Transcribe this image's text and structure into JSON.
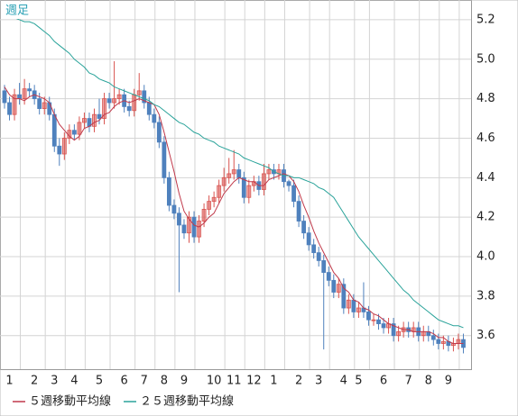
{
  "chart_data": {
    "type": "candlestick",
    "title": "週足",
    "categories": [
      null,
      "1",
      null,
      null,
      null,
      null,
      "2",
      null,
      null,
      null,
      "3",
      null,
      null,
      null,
      "4",
      null,
      null,
      null,
      null,
      "5",
      null,
      null,
      null,
      null,
      "6",
      null,
      null,
      null,
      "7",
      null,
      null,
      null,
      "8",
      null,
      null,
      null,
      "9",
      null,
      null,
      null,
      null,
      null,
      "10",
      null,
      null,
      null,
      "11",
      null,
      null,
      null,
      "12",
      null,
      null,
      null,
      "1",
      null,
      null,
      null,
      null,
      "2",
      null,
      null,
      null,
      "3",
      null,
      null,
      null,
      null,
      "4",
      null,
      null,
      "5",
      null,
      null,
      null,
      null,
      "6",
      null,
      null,
      null,
      null,
      "7",
      null,
      null,
      null,
      "8",
      null,
      null,
      null,
      "9",
      null,
      null,
      null
    ],
    "open": [
      4.84,
      4.78,
      4.72,
      4.82,
      4.8,
      4.85,
      4.84,
      4.8,
      4.75,
      4.78,
      4.72,
      4.56,
      4.52,
      4.6,
      4.64,
      4.62,
      4.68,
      4.7,
      4.66,
      4.72,
      4.7,
      4.8,
      4.78,
      4.8,
      4.82,
      4.76,
      4.74,
      4.82,
      4.84,
      4.78,
      4.72,
      4.68,
      4.58,
      4.4,
      4.26,
      4.22,
      4.16,
      4.12,
      4.2,
      4.1,
      4.18,
      4.24,
      4.28,
      4.3,
      4.36,
      4.4,
      4.42,
      4.44,
      4.4,
      4.3,
      4.36,
      4.38,
      4.34,
      4.42,
      4.44,
      4.42,
      4.44,
      4.38,
      4.36,
      4.28,
      4.18,
      4.12,
      4.06,
      4.02,
      3.98,
      3.92,
      3.88,
      3.82,
      3.86,
      3.74,
      3.78,
      3.72,
      3.74,
      3.72,
      3.68,
      3.68,
      3.66,
      3.64,
      3.66,
      3.6,
      3.62,
      3.64,
      3.62,
      3.64,
      3.6,
      3.62,
      3.6,
      3.58,
      3.56,
      3.57,
      3.55,
      3.56,
      3.58
    ],
    "high": [
      4.87,
      4.81,
      4.85,
      4.88,
      4.9,
      4.88,
      4.87,
      4.83,
      4.81,
      4.81,
      4.75,
      4.6,
      4.63,
      4.67,
      4.67,
      4.71,
      4.73,
      4.73,
      4.75,
      4.8,
      4.83,
      4.83,
      4.99,
      4.85,
      4.85,
      4.79,
      4.85,
      4.93,
      4.87,
      4.81,
      4.75,
      4.71,
      4.61,
      4.43,
      4.29,
      4.25,
      4.19,
      4.23,
      4.23,
      4.21,
      4.27,
      4.31,
      4.33,
      4.39,
      4.45,
      4.5,
      4.54,
      4.47,
      4.43,
      4.39,
      4.41,
      4.41,
      4.47,
      4.47,
      4.47,
      4.47,
      4.47,
      4.39,
      4.39,
      4.31,
      4.21,
      4.15,
      4.09,
      4.05,
      4.01,
      3.95,
      3.91,
      3.89,
      3.89,
      3.81,
      3.81,
      3.77,
      3.87,
      3.75,
      3.71,
      3.71,
      3.69,
      3.69,
      3.69,
      3.65,
      3.67,
      3.67,
      3.67,
      3.67,
      3.65,
      3.65,
      3.63,
      3.61,
      3.6,
      3.6,
      3.59,
      3.61,
      3.61
    ],
    "low": [
      4.75,
      4.69,
      4.69,
      4.77,
      4.77,
      4.81,
      4.77,
      4.72,
      4.72,
      4.69,
      4.53,
      4.46,
      4.49,
      4.57,
      4.59,
      4.59,
      4.65,
      4.63,
      4.63,
      4.67,
      4.67,
      4.75,
      4.75,
      4.77,
      4.73,
      4.71,
      4.71,
      4.79,
      4.75,
      4.69,
      4.65,
      4.55,
      4.37,
      4.23,
      4.19,
      3.82,
      4.09,
      4.07,
      4.07,
      4.07,
      4.15,
      4.21,
      4.25,
      4.27,
      4.33,
      4.37,
      4.39,
      4.37,
      4.27,
      4.27,
      4.33,
      4.31,
      4.31,
      4.39,
      4.39,
      4.39,
      4.35,
      4.33,
      4.25,
      4.15,
      4.09,
      4.03,
      3.99,
      3.95,
      3.53,
      3.85,
      3.79,
      3.79,
      3.71,
      3.71,
      3.69,
      3.69,
      3.69,
      3.65,
      3.65,
      3.63,
      3.61,
      3.61,
      3.57,
      3.57,
      3.59,
      3.59,
      3.59,
      3.57,
      3.57,
      3.57,
      3.55,
      3.53,
      3.53,
      3.52,
      3.52,
      3.53,
      3.51
    ],
    "close": [
      4.78,
      4.72,
      4.82,
      4.8,
      4.85,
      4.84,
      4.8,
      4.75,
      4.78,
      4.72,
      4.56,
      4.52,
      4.6,
      4.64,
      4.62,
      4.68,
      4.7,
      4.66,
      4.72,
      4.7,
      4.8,
      4.78,
      4.8,
      4.82,
      4.76,
      4.74,
      4.82,
      4.84,
      4.78,
      4.72,
      4.68,
      4.58,
      4.4,
      4.26,
      4.22,
      4.16,
      4.12,
      4.2,
      4.1,
      4.18,
      4.24,
      4.28,
      4.3,
      4.36,
      4.4,
      4.42,
      4.44,
      4.4,
      4.3,
      4.36,
      4.38,
      4.34,
      4.42,
      4.44,
      4.42,
      4.44,
      4.38,
      4.36,
      4.28,
      4.18,
      4.12,
      4.06,
      4.02,
      3.98,
      3.92,
      3.88,
      3.82,
      3.86,
      3.74,
      3.78,
      3.72,
      3.74,
      3.72,
      3.68,
      3.68,
      3.66,
      3.64,
      3.66,
      3.6,
      3.62,
      3.64,
      3.62,
      3.64,
      3.6,
      3.62,
      3.6,
      3.58,
      3.56,
      3.57,
      3.55,
      3.56,
      3.58,
      3.54
    ],
    "up_color": "#d9534f",
    "down_color": "#4f81bd",
    "series": [
      {
        "name": "５週移動平均線",
        "color": "#c0394a",
        "values": [
          4.86,
          4.82,
          4.8,
          4.8,
          4.79,
          4.81,
          4.82,
          4.81,
          4.8,
          4.78,
          4.72,
          4.67,
          4.64,
          4.61,
          4.59,
          4.61,
          4.65,
          4.66,
          4.68,
          4.69,
          4.72,
          4.73,
          4.76,
          4.78,
          4.79,
          4.78,
          4.79,
          4.8,
          4.79,
          4.78,
          4.77,
          4.72,
          4.63,
          4.53,
          4.43,
          4.32,
          4.23,
          4.19,
          4.16,
          4.15,
          4.17,
          4.2,
          4.22,
          4.27,
          4.32,
          4.35,
          4.38,
          4.4,
          4.39,
          4.38,
          4.38,
          4.36,
          4.36,
          4.39,
          4.4,
          4.41,
          4.42,
          4.41,
          4.38,
          4.33,
          4.26,
          4.2,
          4.13,
          4.07,
          4.02,
          3.97,
          3.92,
          3.89,
          3.84,
          3.82,
          3.78,
          3.77,
          3.74,
          3.73,
          3.71,
          3.7,
          3.68,
          3.66,
          3.65,
          3.64,
          3.63,
          3.63,
          3.62,
          3.62,
          3.62,
          3.62,
          3.61,
          3.59,
          3.59,
          3.57,
          3.56,
          3.56,
          3.56
        ]
      },
      {
        "name": "２５週移動平均線",
        "color": "#2aa39a",
        "values": [
          5.23,
          5.22,
          5.21,
          5.2,
          5.19,
          5.19,
          5.18,
          5.16,
          5.14,
          5.12,
          5.09,
          5.07,
          5.05,
          5.03,
          5.0,
          4.98,
          4.96,
          4.93,
          4.92,
          4.9,
          4.89,
          4.88,
          4.86,
          4.85,
          4.84,
          4.83,
          4.82,
          4.81,
          4.8,
          4.79,
          4.77,
          4.76,
          4.74,
          4.72,
          4.7,
          4.68,
          4.67,
          4.65,
          4.63,
          4.62,
          4.6,
          4.59,
          4.58,
          4.56,
          4.55,
          4.54,
          4.53,
          4.52,
          4.5,
          4.49,
          4.48,
          4.47,
          4.46,
          4.45,
          4.43,
          4.42,
          4.41,
          4.41,
          4.4,
          4.4,
          4.39,
          4.38,
          4.37,
          4.35,
          4.34,
          4.32,
          4.3,
          4.26,
          4.22,
          4.18,
          4.14,
          4.1,
          4.07,
          4.04,
          4.01,
          3.98,
          3.95,
          3.92,
          3.89,
          3.86,
          3.83,
          3.81,
          3.78,
          3.76,
          3.74,
          3.72,
          3.7,
          3.68,
          3.67,
          3.66,
          3.65,
          3.65,
          3.64
        ]
      }
    ],
    "ylim": [
      3.43,
      5.3
    ],
    "yticks": [
      3.6,
      3.8,
      {
        "value": 4,
        "label": "4.0"
      },
      4.2,
      4.4,
      4.6,
      4.8,
      {
        "value": 5,
        "label": "5.0"
      },
      5.2
    ],
    "grid": true
  }
}
